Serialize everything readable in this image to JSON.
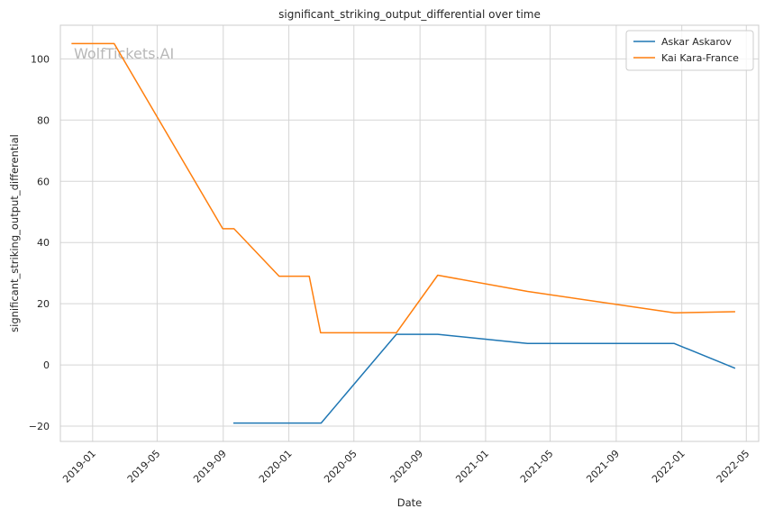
{
  "chart_data": {
    "type": "line",
    "title": "significant_striking_output_differential over time",
    "xlabel": "Date",
    "ylabel": "significant_striking_output_differential",
    "watermark": "WolfTickets.AI",
    "x_ticks": [
      "2019-01",
      "2019-05",
      "2019-09",
      "2020-01",
      "2020-05",
      "2020-09",
      "2021-01",
      "2021-05",
      "2021-09",
      "2022-01",
      "2022-05"
    ],
    "y_ticks": [
      -20,
      0,
      20,
      40,
      60,
      80,
      100
    ],
    "xlim": [
      "2018-11-02",
      "2022-05-24"
    ],
    "ylim": [
      -25,
      111
    ],
    "grid": true,
    "legend_position": "top-right",
    "series": [
      {
        "name": "Askar Askarov",
        "color": "#1f77b4",
        "points": [
          {
            "x": "2019-09-21",
            "y": -19
          },
          {
            "x": "2020-03-01",
            "y": -19
          },
          {
            "x": "2020-07-19",
            "y": 10
          },
          {
            "x": "2020-10-04",
            "y": 10
          },
          {
            "x": "2021-03-20",
            "y": 7
          },
          {
            "x": "2021-12-18",
            "y": 7
          },
          {
            "x": "2022-04-09",
            "y": -1
          }
        ]
      },
      {
        "name": "Kai Kara-France",
        "color": "#ff7f0e",
        "points": [
          {
            "x": "2018-11-24",
            "y": 105
          },
          {
            "x": "2019-02-10",
            "y": 105
          },
          {
            "x": "2019-08-31",
            "y": 44.5
          },
          {
            "x": "2019-09-21",
            "y": 44.5
          },
          {
            "x": "2019-12-14",
            "y": 29
          },
          {
            "x": "2020-02-08",
            "y": 29
          },
          {
            "x": "2020-02-29",
            "y": 10.5
          },
          {
            "x": "2020-07-19",
            "y": 10.5
          },
          {
            "x": "2020-10-04",
            "y": 29.3
          },
          {
            "x": "2021-03-20",
            "y": 24
          },
          {
            "x": "2021-12-18",
            "y": 17
          },
          {
            "x": "2022-04-09",
            "y": 17.4
          }
        ]
      }
    ]
  }
}
